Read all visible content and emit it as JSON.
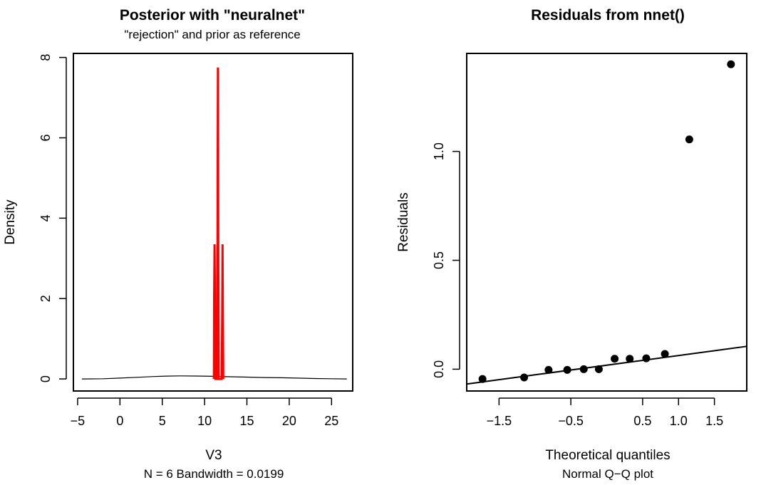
{
  "chart_data": [
    {
      "type": "line",
      "title": "Posterior with \"neuralnet\"",
      "subtitle": "\"rejection\" and prior as reference",
      "xlabel": "V3",
      "ylabel": "Density",
      "annotation": "N = 6   Bandwidth = 0.0199",
      "xlim": [
        -5.5,
        27.5
      ],
      "ylim": [
        -0.3,
        8.1
      ],
      "xticks": [
        -5,
        0,
        5,
        10,
        15,
        20,
        25
      ],
      "xtick_labels": [
        "−5",
        "0",
        "5",
        "10",
        "15",
        "20",
        "25"
      ],
      "yticks": [
        0,
        2,
        4,
        6,
        8
      ],
      "ytick_labels": [
        "0",
        "2",
        "4",
        "6",
        "8"
      ],
      "grid": false,
      "colors": {
        "posterior": "#ff0000",
        "prior": "#000000",
        "rejection": "#bebebe"
      },
      "series": [
        {
          "x": [
            -4.5,
            -2,
            0,
            2,
            4,
            5.5,
            7,
            9,
            11,
            13,
            15,
            17,
            19,
            21,
            23,
            25,
            26.8
          ],
          "values": [
            0.0,
            0.005,
            0.02,
            0.04,
            0.06,
            0.07,
            0.075,
            0.072,
            0.065,
            0.055,
            0.045,
            0.035,
            0.03,
            0.02,
            0.01,
            0.004,
            0.0
          ]
        },
        {
          "x": [
            10.9,
            11.1,
            11.3,
            11.5,
            11.7,
            11.9,
            12.1,
            12.3
          ],
          "values": [
            0.0,
            0.04,
            0.06,
            0.07,
            0.06,
            0.04,
            0.02,
            0.0
          ]
        },
        {
          "x": [
            11.1,
            11.13,
            11.18,
            11.23,
            11.28,
            11.35,
            11.45,
            11.52,
            11.57,
            11.62,
            11.67,
            11.75,
            11.85,
            11.95,
            12.02,
            12.08,
            12.12,
            12.16,
            12.2
          ],
          "values": [
            0.0,
            2.0,
            3.35,
            2.0,
            0.0,
            0.0,
            0.0,
            3.0,
            7.75,
            3.0,
            0.0,
            0.0,
            0.0,
            0.0,
            0.0,
            1.5,
            3.35,
            1.5,
            0.0
          ]
        }
      ]
    },
    {
      "type": "scatter",
      "title": "Residuals from nnet()",
      "xlabel": "Theoretical quantiles",
      "ylabel": "Residuals",
      "annotation": "Normal Q−Q plot",
      "xlim": [
        -1.95,
        1.95
      ],
      "ylim": [
        -0.1,
        1.45
      ],
      "xticks": [
        -1.5,
        -0.5,
        0.5,
        1.0,
        1.5
      ],
      "xtick_labels": [
        "−1.5",
        "−0.5",
        "0.5",
        "1.0",
        "1.5"
      ],
      "yticks": [
        0.0,
        0.5,
        1.0
      ],
      "ytick_labels": [
        "0.0",
        "0.5",
        "1.0"
      ],
      "grid": false,
      "x": [
        -1.73,
        -1.15,
        -0.81,
        -0.55,
        -0.32,
        -0.11,
        0.11,
        0.32,
        0.55,
        0.81,
        1.15,
        1.73
      ],
      "values": [
        -0.045,
        -0.038,
        -0.003,
        -0.003,
        0.0,
        0.0,
        0.048,
        0.048,
        0.05,
        0.07,
        1.055,
        1.4
      ],
      "qqline": {
        "x": [
          -1.95,
          1.95
        ],
        "values": [
          -0.068,
          0.105
        ]
      }
    }
  ]
}
